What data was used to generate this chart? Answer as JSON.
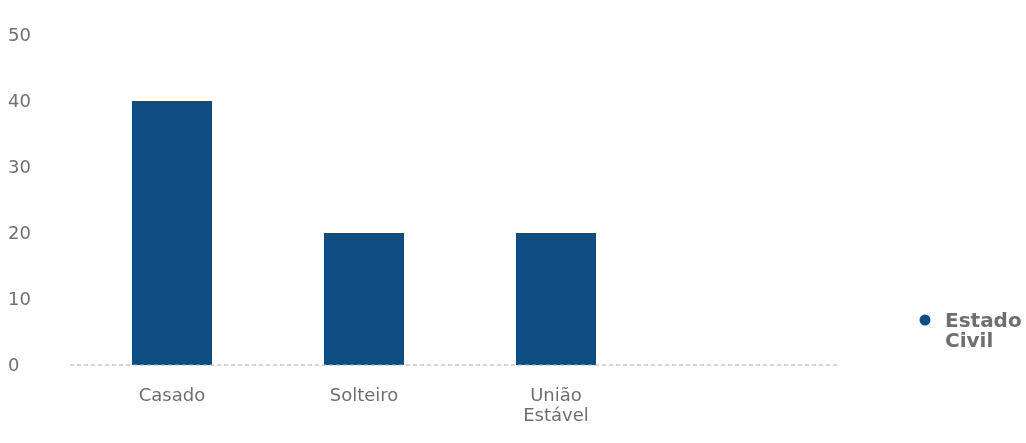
{
  "chart_data": {
    "type": "bar",
    "categories": [
      "Casado",
      "Solteiro",
      "União Estável"
    ],
    "series": [
      {
        "name": "Estado Civil",
        "color": "#0f4c81",
        "values": [
          40,
          20,
          20
        ]
      }
    ],
    "ylim": [
      0,
      50
    ],
    "yticks": [
      0,
      10,
      20,
      30,
      40,
      50
    ],
    "grid": false,
    "legend": "right"
  }
}
